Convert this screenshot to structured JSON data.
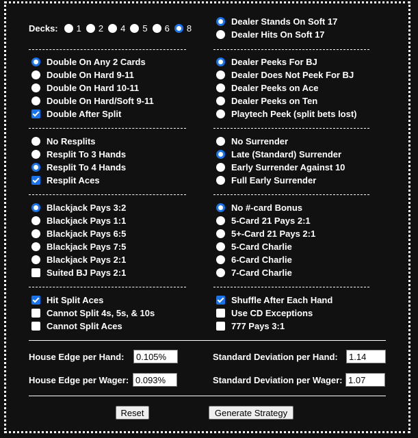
{
  "decks": {
    "label": "Decks:",
    "options": [
      "1",
      "2",
      "4",
      "5",
      "6",
      "8"
    ],
    "selected": "8"
  },
  "soft17": [
    {
      "label": "Dealer Stands On Soft 17",
      "on": true
    },
    {
      "label": "Dealer Hits On Soft 17",
      "on": false
    }
  ],
  "double": [
    {
      "label": "Double On Any 2 Cards",
      "type": "radio",
      "on": true
    },
    {
      "label": "Double On Hard 9-11",
      "type": "radio",
      "on": false
    },
    {
      "label": "Double On Hard 10-11",
      "type": "radio",
      "on": false
    },
    {
      "label": "Double On Hard/Soft 9-11",
      "type": "radio",
      "on": false
    },
    {
      "label": "Double After Split",
      "type": "check",
      "on": true
    }
  ],
  "peek": [
    {
      "label": "Dealer Peeks For BJ",
      "type": "radio",
      "on": true
    },
    {
      "label": "Dealer Does Not Peek For BJ",
      "type": "radio",
      "on": false
    },
    {
      "label": "Dealer Peeks on Ace",
      "type": "radio",
      "on": false
    },
    {
      "label": "Dealer Peeks on Ten",
      "type": "radio",
      "on": false
    },
    {
      "label": "Playtech Peek (split bets lost)",
      "type": "radio",
      "on": false
    }
  ],
  "resplit": [
    {
      "label": "No Resplits",
      "type": "radio",
      "on": false
    },
    {
      "label": "Resplit To 3 Hands",
      "type": "radio",
      "on": false
    },
    {
      "label": "Resplit To 4 Hands",
      "type": "radio",
      "on": true
    },
    {
      "label": "Resplit Aces",
      "type": "check",
      "on": true
    }
  ],
  "surrender": [
    {
      "label": "No Surrender",
      "type": "radio",
      "on": false
    },
    {
      "label": "Late (Standard) Surrender",
      "type": "radio",
      "on": true
    },
    {
      "label": "Early Surrender Against 10",
      "type": "radio",
      "on": false
    },
    {
      "label": "Full Early Surrender",
      "type": "radio",
      "on": false
    }
  ],
  "payout": [
    {
      "label": "Blackjack Pays 3:2",
      "type": "radio",
      "on": true
    },
    {
      "label": "Blackjack Pays 1:1",
      "type": "radio",
      "on": false
    },
    {
      "label": "Blackjack Pays 6:5",
      "type": "radio",
      "on": false
    },
    {
      "label": "Blackjack Pays 7:5",
      "type": "radio",
      "on": false
    },
    {
      "label": "Blackjack Pays 2:1",
      "type": "radio",
      "on": false
    },
    {
      "label": "Suited BJ Pays 2:1",
      "type": "check",
      "on": false
    }
  ],
  "bonus": [
    {
      "label": "No #-card Bonus",
      "type": "radio",
      "on": true
    },
    {
      "label": "5-Card 21 Pays 2:1",
      "type": "radio",
      "on": false
    },
    {
      "label": "5+-Card 21 Pays 2:1",
      "type": "radio",
      "on": false
    },
    {
      "label": "5-Card Charlie",
      "type": "radio",
      "on": false
    },
    {
      "label": "6-Card Charlie",
      "type": "radio",
      "on": false
    },
    {
      "label": "7-Card Charlie",
      "type": "radio",
      "on": false
    }
  ],
  "splitOpts": [
    {
      "label": "Hit Split Aces",
      "type": "check",
      "on": true
    },
    {
      "label": "Cannot Split 4s, 5s, & 10s",
      "type": "check",
      "on": false
    },
    {
      "label": "Cannot Split Aces",
      "type": "check",
      "on": false
    }
  ],
  "misc": [
    {
      "label": "Shuffle After Each Hand",
      "type": "check",
      "on": true
    },
    {
      "label": "Use CD Exceptions",
      "type": "check",
      "on": false
    },
    {
      "label": "777 Pays 3:1",
      "type": "check",
      "on": false
    }
  ],
  "stats": {
    "he_hand_label": "House Edge per Hand:",
    "he_hand": "0.105%",
    "he_wager_label": "House Edge per Wager:",
    "he_wager": "0.093%",
    "sd_hand_label": "Standard Deviation per Hand:",
    "sd_hand": "1.14",
    "sd_wager_label": "Standard Deviation per Wager:",
    "sd_wager": "1.07"
  },
  "buttons": {
    "reset": "Reset",
    "generate": "Generate Strategy"
  },
  "colors": {
    "accent": "#1a73e8",
    "background": "#111111"
  }
}
